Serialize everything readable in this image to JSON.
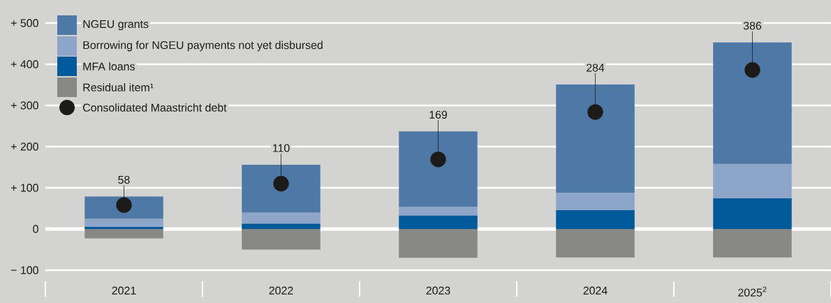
{
  "chart_data": {
    "type": "bar",
    "stacked": true,
    "categories": [
      "2021",
      "2022",
      "2023",
      "2024",
      "2025$^{2}$"
    ],
    "series": [
      {
        "name": "MFA loans",
        "color": "#005a9a",
        "values": [
          5,
          13,
          33,
          46,
          75
        ]
      },
      {
        "name": "Borrowing for NGEU payments not yet disbursed",
        "color": "#8ca5c8",
        "values": [
          20,
          27,
          21,
          42,
          83
        ]
      },
      {
        "name": "NGEU grants",
        "color": "#4e79a7",
        "values": [
          54,
          116,
          183,
          263,
          295
        ]
      },
      {
        "name": "Residual item¹",
        "color": "#878786",
        "values": [
          -23,
          -50,
          -70,
          -69,
          -69
        ]
      },
      {
        "name": "Consolidated Maastricht debt",
        "type": "scatter",
        "marker": "circle",
        "color": "#1d1b1a",
        "values": [
          58,
          110,
          169,
          284,
          386
        ],
        "value_labels": [
          "58",
          "110",
          "169",
          "284",
          "386"
        ]
      }
    ],
    "ylim": [
      -100,
      500
    ],
    "yticks": [
      {
        "value": -100,
        "label": "− 100"
      },
      0,
      {
        "value": 100,
        "label": "+ 100"
      },
      {
        "value": 200,
        "label": "+ 200"
      },
      {
        "value": 300,
        "label": "+ 300"
      },
      {
        "value": 400,
        "label": "+ 400"
      },
      {
        "value": 500,
        "label": "+ 500"
      }
    ],
    "ref_lines": [
      {
        "axis": "y",
        "value": 0,
        "color": "#ffffff"
      }
    ],
    "grid": "y",
    "legend": "top left"
  }
}
